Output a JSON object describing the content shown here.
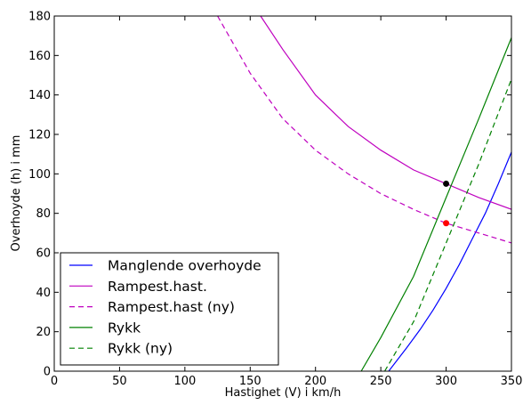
{
  "chart_data": {
    "type": "line",
    "title": "",
    "xlabel": "Hastighet (V) i km/h",
    "ylabel": "Overhoyde (h) i mm",
    "xlim": [
      0,
      350
    ],
    "ylim": [
      0,
      180
    ],
    "xticks": [
      0,
      50,
      100,
      150,
      200,
      250,
      300,
      350
    ],
    "yticks": [
      0,
      20,
      40,
      60,
      80,
      100,
      120,
      140,
      160,
      180
    ],
    "grid": false,
    "legend_position": "lower-left",
    "series": [
      {
        "name": "Manglende overhoyde",
        "color": "#0000ff",
        "style": "solid",
        "x": [
          256,
          270,
          280,
          290,
          300,
          310,
          320,
          330,
          340,
          350
        ],
        "y": [
          0,
          12,
          21,
          31,
          42,
          54,
          67,
          80,
          95,
          111
        ]
      },
      {
        "name": "Rampest.hast.",
        "color": "#bf00bf",
        "style": "solid",
        "x": [
          158,
          175,
          200,
          225,
          250,
          275,
          300,
          325,
          350
        ],
        "y": [
          180,
          163,
          140,
          124,
          112,
          102,
          95,
          88,
          82
        ]
      },
      {
        "name": "Rampest.hast (ny)",
        "color": "#bf00bf",
        "style": "dashed",
        "x": [
          125,
          150,
          175,
          200,
          225,
          250,
          275,
          300,
          325,
          350
        ],
        "y": [
          180,
          151,
          128,
          112,
          100,
          90,
          82,
          75,
          70,
          65
        ]
      },
      {
        "name": "Rykk",
        "color": "#008000",
        "style": "solid",
        "x": [
          235,
          250,
          275,
          300,
          325,
          350
        ],
        "y": [
          0,
          17,
          48,
          88,
          128,
          169
        ]
      },
      {
        "name": "Rykk (ny)",
        "color": "#008000",
        "style": "dashed",
        "x": [
          253,
          275,
          300,
          325,
          350
        ],
        "y": [
          0,
          25,
          65,
          105,
          148
        ]
      }
    ],
    "points": [
      {
        "x": 300,
        "y": 95,
        "color": "#000000"
      },
      {
        "x": 300,
        "y": 75,
        "color": "#ff0000"
      }
    ]
  }
}
